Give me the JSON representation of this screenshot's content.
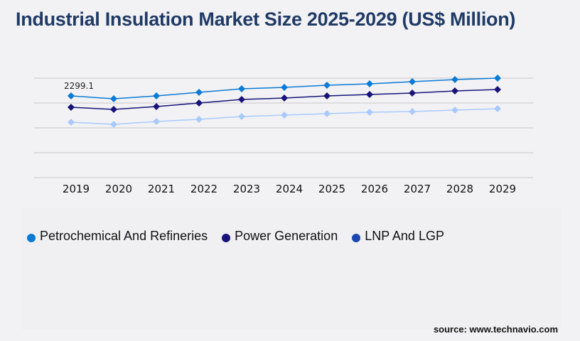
{
  "title": "Industrial Insulation Market Size 2025-2029 (US$ Million)",
  "source": "source: www.technavio.com",
  "chart_data": {
    "type": "line",
    "title": "Industrial Insulation Market Size 2025-2029 (US$ Million)",
    "x": [
      "2019",
      "2020",
      "2021",
      "2022",
      "2023",
      "2024",
      "2025",
      "2026",
      "2027",
      "2028",
      "2029"
    ],
    "ylim": [
      0,
      2800
    ],
    "grid": true,
    "gridlines": [
      0,
      700,
      1400,
      2100,
      2800
    ],
    "legend": "bottom-left",
    "annotation": {
      "text": "2299.1",
      "series": 0,
      "index": 0
    },
    "series": [
      {
        "name": "Petrochemical And Refineries",
        "color": "#0a7ad6",
        "legend_color": "#0a7ad6",
        "values": [
          2299.1,
          2220,
          2300,
          2400,
          2500,
          2540,
          2600,
          2640,
          2700,
          2760,
          2800
        ]
      },
      {
        "name": "Power Generation",
        "color": "#17137a",
        "legend_color": "#17137a",
        "values": [
          1980,
          1920,
          2000,
          2100,
          2200,
          2240,
          2300,
          2340,
          2380,
          2440,
          2480
        ]
      },
      {
        "name": "LNP And LGP",
        "color": "#a9c9ff",
        "legend_color": "#1a47b0",
        "values": [
          1560,
          1500,
          1580,
          1640,
          1720,
          1760,
          1800,
          1840,
          1860,
          1900,
          1940
        ]
      }
    ]
  }
}
